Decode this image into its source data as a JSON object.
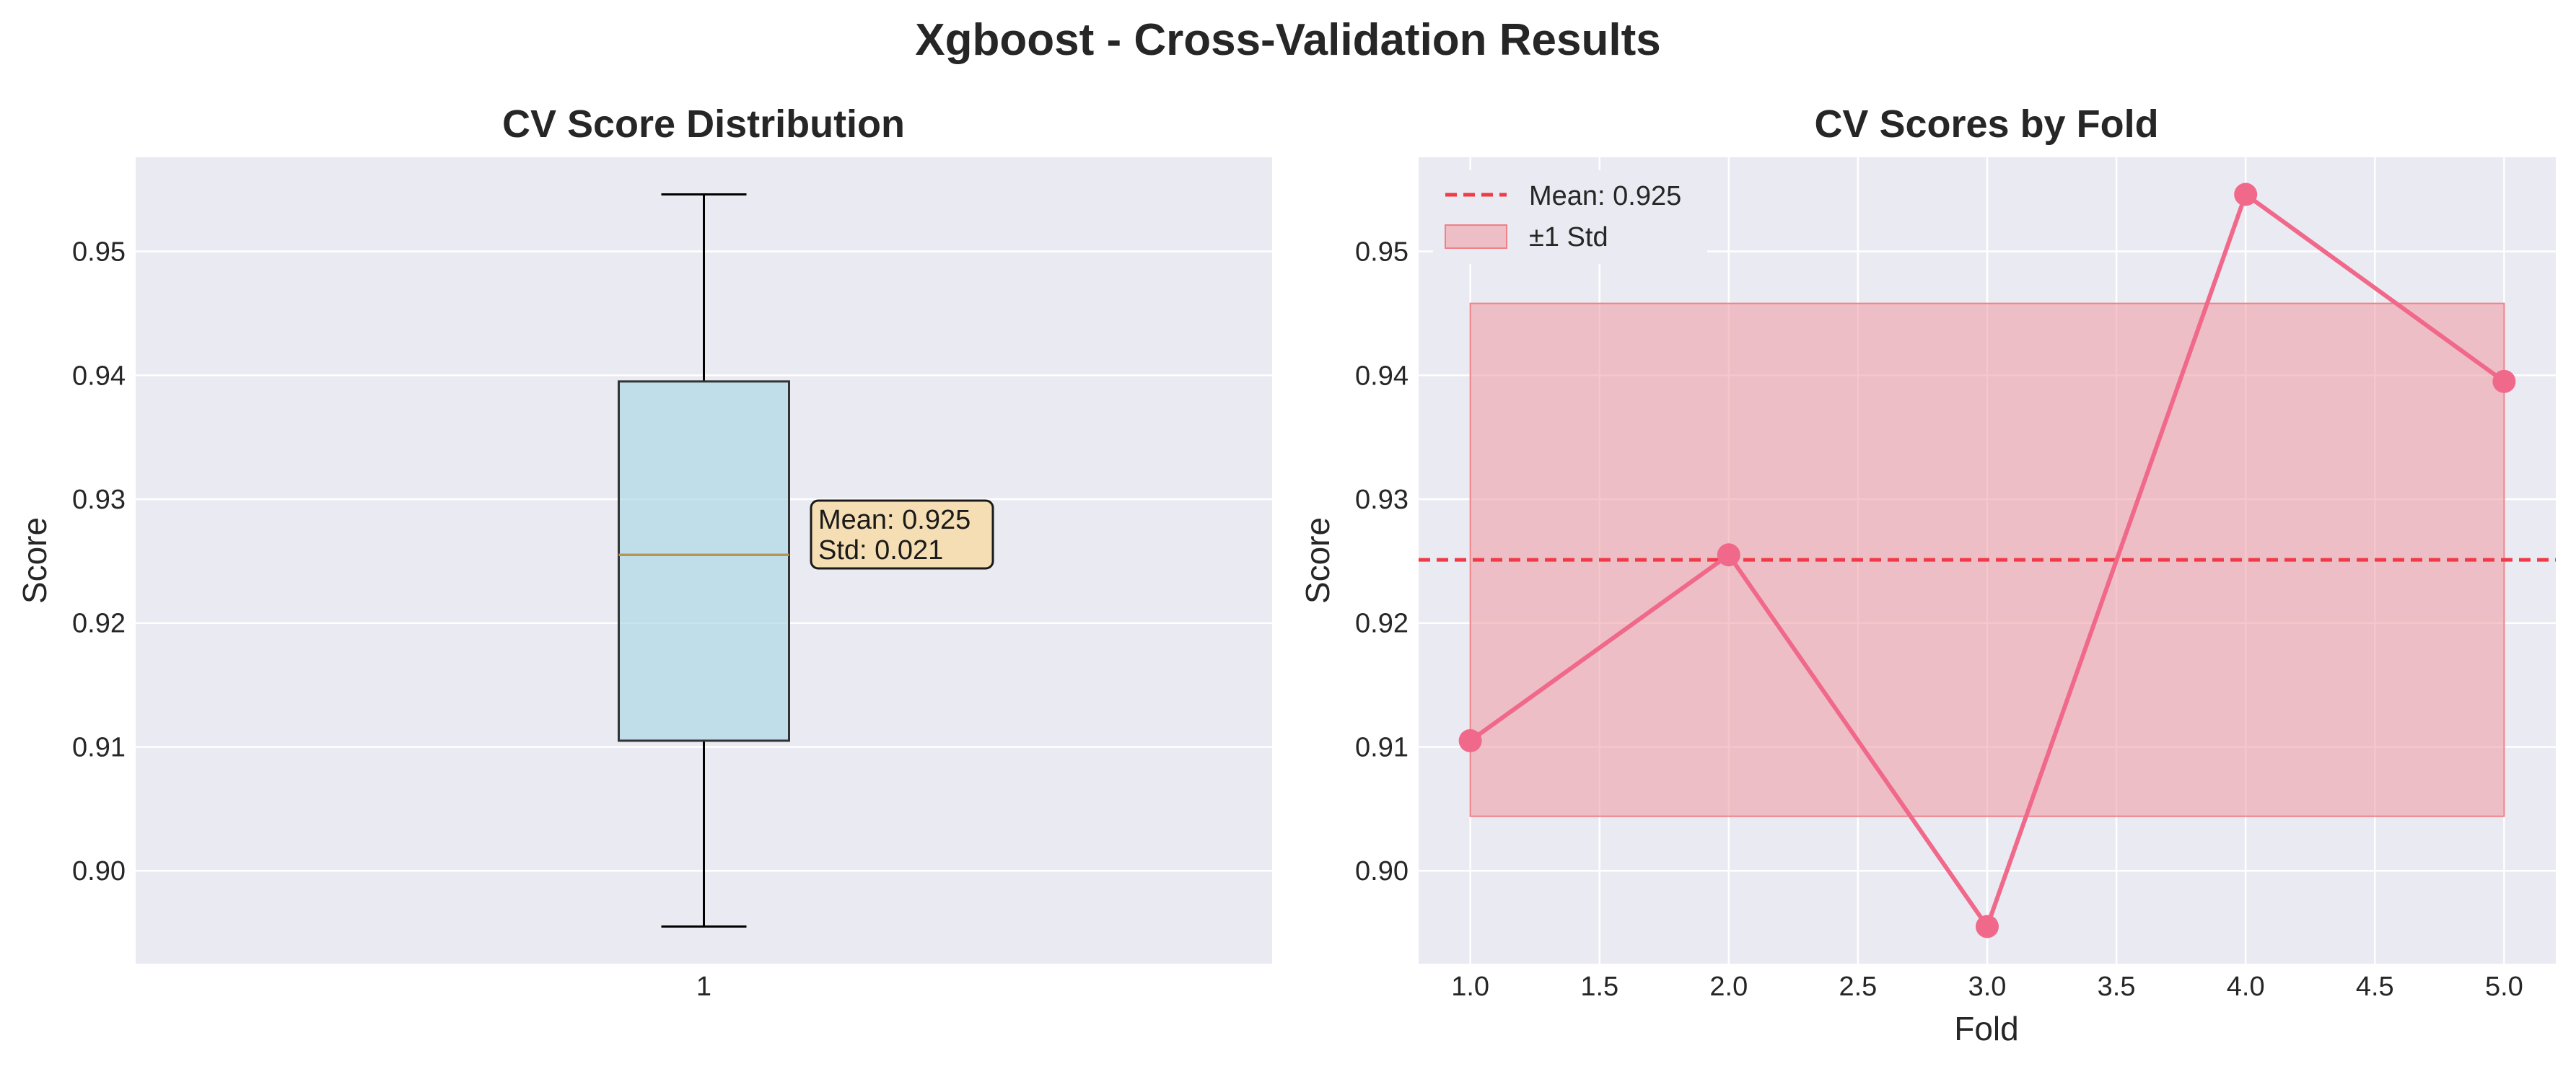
{
  "figure": {
    "title": "Xgboost - Cross-Validation Results"
  },
  "chart_data": [
    {
      "type": "box",
      "title": "CV Score Distribution",
      "xlabel": "",
      "ylabel": "Score",
      "categories": [
        "1"
      ],
      "box": {
        "min": 0.8955,
        "q1": 0.9105,
        "median": 0.9255,
        "q3": 0.9395,
        "max": 0.9546
      },
      "ylim": [
        0.8925,
        0.9576
      ],
      "yticks": [
        "0.90",
        "0.91",
        "0.92",
        "0.93",
        "0.94",
        "0.95"
      ],
      "annotation": [
        "Mean: 0.925",
        "Std: 0.021"
      ],
      "colors": {
        "box_fill": "#add8e6",
        "box_edge": "#333333",
        "median": "#b8954a",
        "annotation_fill": "#f5deb3"
      },
      "grid": true
    },
    {
      "type": "line",
      "title": "CV Scores by Fold",
      "xlabel": "Fold",
      "ylabel": "Score",
      "x": [
        1.0,
        2.0,
        3.0,
        4.0,
        5.0
      ],
      "series": [
        {
          "values": [
            0.9105,
            0.9255,
            0.8955,
            0.9546,
            0.9395
          ],
          "color": "#f0698a"
        }
      ],
      "mean": 0.9251,
      "std_band": [
        0.9044,
        0.9458
      ],
      "xlim": [
        0.8,
        5.2
      ],
      "ylim": [
        0.8925,
        0.9576
      ],
      "xticks": [
        "1.0",
        "1.5",
        "2.0",
        "2.5",
        "3.0",
        "3.5",
        "4.0",
        "4.5",
        "5.0"
      ],
      "yticks": [
        "0.90",
        "0.91",
        "0.92",
        "0.93",
        "0.94",
        "0.95"
      ],
      "legend": {
        "position": "top-left",
        "entries": [
          "Mean: 0.925",
          "±1 Std"
        ]
      },
      "colors": {
        "mean_line": "#f03a47",
        "band": "#f0a0a8"
      },
      "grid": true
    }
  ]
}
